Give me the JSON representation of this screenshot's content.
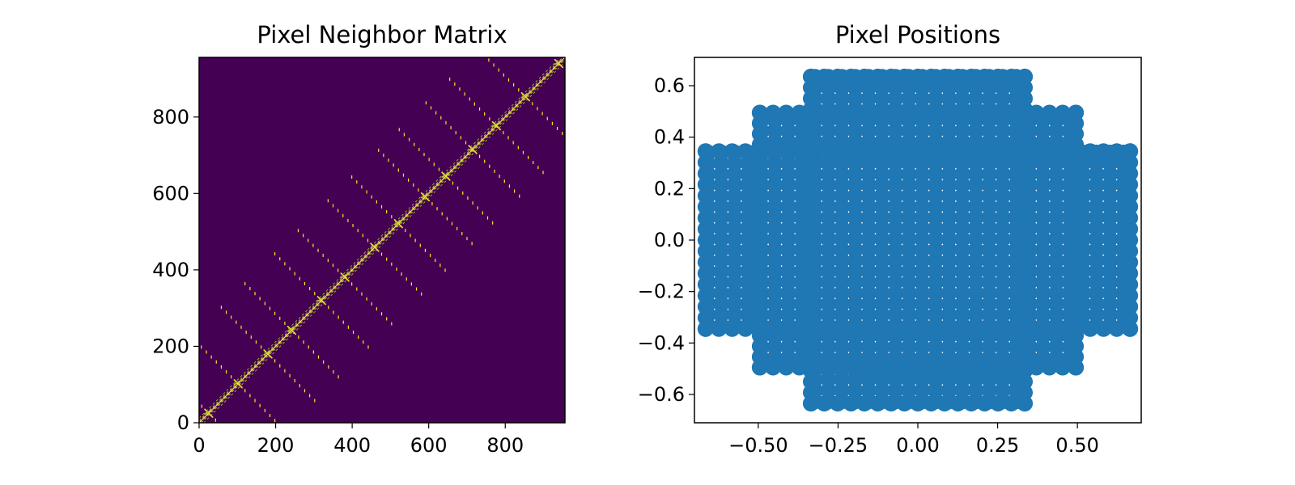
{
  "chart_data": [
    {
      "type": "heatmap",
      "title": "Pixel Neighbor Matrix",
      "xlabel": "",
      "ylabel": "",
      "xlim": [
        0,
        956
      ],
      "ylim": [
        0,
        956
      ],
      "xticks": [
        0,
        200,
        400,
        600,
        800
      ],
      "yticks": [
        0,
        200,
        400,
        600,
        800
      ],
      "background_color": "#440154",
      "highlight_color": "#fde725",
      "mid_color": "#b7c93a",
      "matrix_size": 956,
      "structure": {
        "description": "sparse symmetric neighbor matrix, nonzeros along main diagonal with off-diagonal bands",
        "block_size": 77,
        "block_centers": [
          25,
          102,
          180,
          242,
          320,
          381,
          459,
          521,
          591,
          645,
          715,
          777,
          853,
          940
        ],
        "band_offsets": [
          -12,
          -6,
          -3,
          3,
          6,
          12
        ],
        "cross_arm_length": 130
      }
    },
    {
      "type": "scatter",
      "title": "Pixel Positions",
      "xlabel": "",
      "ylabel": "",
      "xlim": [
        -0.7,
        0.7
      ],
      "ylim": [
        -0.71,
        0.71
      ],
      "xticks": [
        -0.5,
        -0.25,
        0.0,
        0.25,
        0.5
      ],
      "xtick_labels": [
        "−0.50",
        "−0.25",
        "0.00",
        "0.25",
        "0.50"
      ],
      "yticks": [
        -0.6,
        -0.4,
        -0.2,
        0.0,
        0.2,
        0.4,
        0.6
      ],
      "ytick_labels": [
        "−0.6",
        "−0.4",
        "−0.2",
        "0.0",
        "0.2",
        "0.4",
        "0.6"
      ],
      "marker_color": "#1f77b4",
      "marker_spacing": 0.042,
      "regions": [
        {
          "x": [
            -0.335,
            0.335
          ],
          "y": [
            -0.635,
            0.635
          ]
        },
        {
          "x": [
            -0.495,
            0.495
          ],
          "y": [
            -0.495,
            0.495
          ]
        },
        {
          "x": [
            -0.665,
            0.665
          ],
          "y": [
            -0.345,
            0.345
          ]
        }
      ]
    }
  ]
}
